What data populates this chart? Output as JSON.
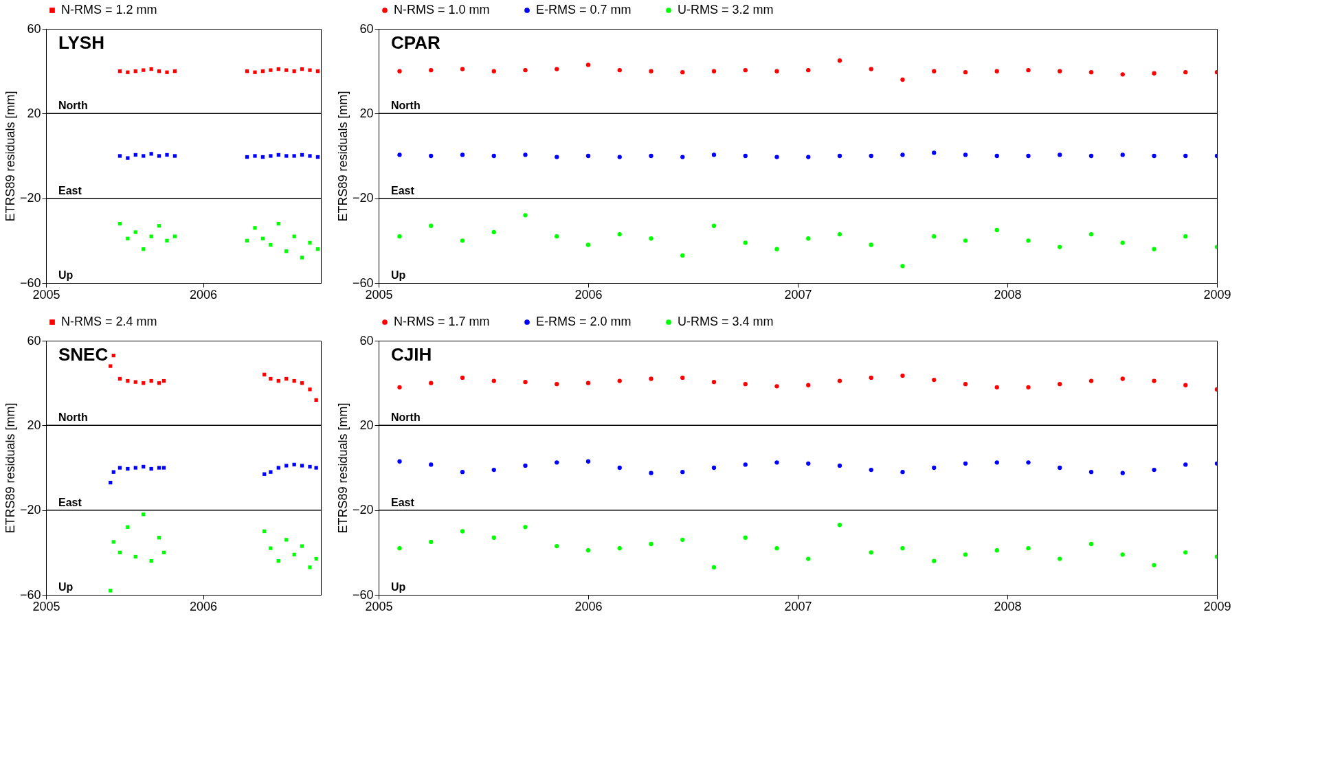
{
  "chart_data": [
    {
      "type": "scatter",
      "title": "LYSH",
      "ylabel": "ETRS89 residuals [mm]",
      "marker": "square",
      "legend": "top",
      "x": [
        2005.47,
        2005.52,
        2005.57,
        2005.62,
        2005.67,
        2005.72,
        2005.77,
        2005.82,
        2006.28,
        2006.33,
        2006.38,
        2006.43,
        2006.48,
        2006.53,
        2006.58,
        2006.63,
        2006.68,
        2006.73
      ],
      "xlim": [
        2005,
        2006.75
      ],
      "xticks": [
        2005,
        2006
      ],
      "ylim": [
        -60,
        60
      ],
      "yticks": [
        -60,
        -20,
        20,
        60
      ],
      "series": [
        {
          "name": "N-RMS =  1.2 mm",
          "color": "#ff0000",
          "values": [
            40,
            39.5,
            40,
            40.5,
            41,
            40,
            39.5,
            40,
            40,
            39.5,
            40,
            40.5,
            41,
            40.5,
            40,
            41,
            40.5,
            40
          ]
        },
        {
          "color": "#0000ff",
          "values": [
            0,
            -1,
            0.5,
            0,
            1,
            0,
            0.5,
            0,
            -0.5,
            0,
            -0.5,
            0,
            0.5,
            0,
            0,
            0.5,
            0,
            -0.5
          ]
        },
        {
          "color": "#00ff00",
          "values": [
            -32,
            -39,
            -36,
            -44,
            -38,
            -33,
            -40,
            -38,
            -40,
            -34,
            -39,
            -42,
            -32,
            -45,
            -38,
            -48,
            -41,
            -44
          ]
        }
      ],
      "ref_lines": [
        {
          "axis": "y",
          "value": 20,
          "color": "#000000"
        },
        {
          "axis": "y",
          "value": -20,
          "color": "#000000"
        }
      ],
      "annotations": [
        "North",
        "East",
        "Up"
      ]
    },
    {
      "type": "scatter",
      "title": "CPAR",
      "ylabel": "ETRS89 residuals [mm]",
      "marker": "circle",
      "legend": "top",
      "x": [
        2005.1,
        2005.25,
        2005.4,
        2005.55,
        2005.7,
        2005.85,
        2006.0,
        2006.15,
        2006.3,
        2006.45,
        2006.6,
        2006.75,
        2006.9,
        2007.05,
        2007.2,
        2007.35,
        2007.5,
        2007.65,
        2007.8,
        2007.95,
        2008.1,
        2008.25,
        2008.4,
        2008.55,
        2008.7,
        2008.85,
        2009.0
      ],
      "xlim": [
        2005,
        2009
      ],
      "xticks": [
        2005,
        2006,
        2007,
        2008,
        2009
      ],
      "ylim": [
        -60,
        60
      ],
      "yticks": [
        -60,
        -20,
        20,
        60
      ],
      "series": [
        {
          "name": "N-RMS =  1.0 mm",
          "color": "#ff0000",
          "values": [
            40,
            40.5,
            41,
            40,
            40.5,
            41,
            43,
            40.5,
            40,
            39.5,
            40,
            40.5,
            40,
            40.5,
            45,
            41,
            36,
            40,
            39.5,
            40,
            40.5,
            40,
            39.5,
            38.5,
            39,
            39.5,
            39.5
          ]
        },
        {
          "name": "E-RMS =  0.7 mm",
          "color": "#0000ff",
          "values": [
            0.5,
            0,
            0.5,
            0,
            0.5,
            -0.5,
            0,
            -0.5,
            0,
            -0.5,
            0.5,
            0,
            -0.5,
            -0.5,
            0,
            0,
            0.5,
            1.5,
            0.5,
            0,
            0,
            0.5,
            0,
            0.5,
            0,
            0,
            0
          ]
        },
        {
          "name": "U-RMS =  3.2 mm",
          "color": "#00ff00",
          "values": [
            -38,
            -33,
            -40,
            -36,
            -28,
            -38,
            -42,
            -37,
            -39,
            -47,
            -33,
            -41,
            -44,
            -39,
            -37,
            -42,
            -52,
            -38,
            -40,
            -35,
            -40,
            -43,
            -37,
            -41,
            -44,
            -38,
            -43
          ]
        }
      ],
      "ref_lines": [
        {
          "axis": "y",
          "value": 20,
          "color": "#000000"
        },
        {
          "axis": "y",
          "value": -20,
          "color": "#000000"
        }
      ],
      "annotations": [
        "North",
        "East",
        "Up"
      ]
    },
    {
      "type": "scatter",
      "title": "SNEC",
      "ylabel": "ETRS89 residuals [mm]",
      "marker": "square",
      "legend": "top",
      "x": [
        2005.41,
        2005.43,
        2005.47,
        2005.52,
        2005.57,
        2005.62,
        2005.67,
        2005.72,
        2005.75,
        2006.39,
        2006.43,
        2006.48,
        2006.53,
        2006.58,
        2006.63,
        2006.68,
        2006.72
      ],
      "xlim": [
        2005,
        2006.75
      ],
      "xticks": [
        2005,
        2006
      ],
      "ylim": [
        -60,
        60
      ],
      "yticks": [
        -60,
        -20,
        20,
        60
      ],
      "series": [
        {
          "name": "N-RMS =  2.4 mm",
          "color": "#ff0000",
          "values": [
            48,
            53,
            42,
            41,
            40.5,
            40,
            41,
            40,
            41,
            44,
            42,
            41,
            42,
            41,
            40,
            37,
            32
          ]
        },
        {
          "color": "#0000ff",
          "values": [
            -7,
            -2,
            0,
            -0.5,
            0,
            0.5,
            -0.5,
            0,
            0,
            -3,
            -2,
            0,
            1,
            1.5,
            1,
            0.5,
            0
          ]
        },
        {
          "color": "#00ff00",
          "values": [
            -58,
            -35,
            -40,
            -28,
            -42,
            -22,
            -44,
            -33,
            -40,
            -30,
            -38,
            -44,
            -34,
            -41,
            -37,
            -47,
            -43
          ]
        }
      ],
      "ref_lines": [
        {
          "axis": "y",
          "value": 20,
          "color": "#000000"
        },
        {
          "axis": "y",
          "value": -20,
          "color": "#000000"
        }
      ],
      "annotations": [
        "North",
        "East",
        "Up"
      ]
    },
    {
      "type": "scatter",
      "title": "CJIH",
      "ylabel": "ETRS89 residuals [mm]",
      "marker": "circle",
      "legend": "top",
      "x": [
        2005.1,
        2005.25,
        2005.4,
        2005.55,
        2005.7,
        2005.85,
        2006.0,
        2006.15,
        2006.3,
        2006.45,
        2006.6,
        2006.75,
        2006.9,
        2007.05,
        2007.2,
        2007.35,
        2007.5,
        2007.65,
        2007.8,
        2007.95,
        2008.1,
        2008.25,
        2008.4,
        2008.55,
        2008.7,
        2008.85,
        2009.0
      ],
      "xlim": [
        2005,
        2009
      ],
      "xticks": [
        2005,
        2006,
        2007,
        2008,
        2009
      ],
      "ylim": [
        -60,
        60
      ],
      "yticks": [
        -60,
        -20,
        20,
        60
      ],
      "series": [
        {
          "name": "N-RMS =  1.7 mm",
          "color": "#ff0000",
          "values": [
            38,
            40,
            42.5,
            41,
            40.5,
            39.5,
            40,
            41,
            42,
            42.5,
            40.5,
            39.5,
            38.5,
            39,
            41,
            42.5,
            43.5,
            41.5,
            39.5,
            38,
            38,
            39.5,
            41,
            42,
            41,
            39,
            37
          ]
        },
        {
          "name": "E-RMS =  2.0 mm",
          "color": "#0000ff",
          "values": [
            3,
            1.5,
            -2,
            -1,
            1,
            2.5,
            3,
            0,
            -2.5,
            -2,
            0,
            1.5,
            2.5,
            2,
            1,
            -1,
            -2,
            0,
            2,
            2.5,
            2.5,
            0,
            -2,
            -2.5,
            -1,
            1.5,
            2
          ]
        },
        {
          "name": "U-RMS =  3.4 mm",
          "color": "#00ff00",
          "values": [
            -38,
            -35,
            -30,
            -33,
            -28,
            -37,
            -39,
            -38,
            -36,
            -34,
            -47,
            -33,
            -38,
            -43,
            -27,
            -40,
            -38,
            -44,
            -41,
            -39,
            -38,
            -43,
            -36,
            -41,
            -46,
            -40,
            -42
          ]
        }
      ],
      "ref_lines": [
        {
          "axis": "y",
          "value": 20,
          "color": "#000000"
        },
        {
          "axis": "y",
          "value": -20,
          "color": "#000000"
        }
      ],
      "annotations": [
        "North",
        "East",
        "Up"
      ]
    }
  ]
}
